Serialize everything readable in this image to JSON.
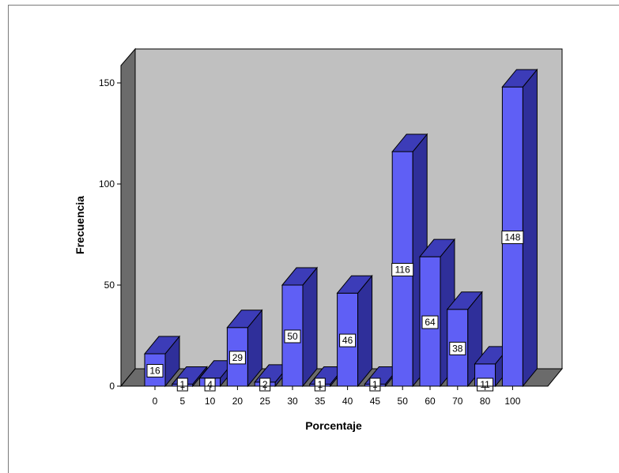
{
  "chart_data": {
    "type": "bar",
    "xlabel": "Porcentaje",
    "ylabel": "Frecuencia",
    "categories": [
      "0",
      "5",
      "10",
      "20",
      "25",
      "30",
      "35",
      "40",
      "45",
      "50",
      "60",
      "70",
      "80",
      "100"
    ],
    "values": [
      16,
      1,
      4,
      29,
      2,
      50,
      1,
      46,
      1,
      116,
      64,
      38,
      11,
      148
    ],
    "ylim": [
      0,
      150
    ],
    "yticks": [
      "0",
      "50",
      "100",
      "150"
    ],
    "three_d": true,
    "data_labels": true,
    "grid": false,
    "colors": {
      "bar_front": "#5f5ff5",
      "bar_side": "#2f2f9a",
      "bar_top": "#3c3cb8",
      "wall": "#c0c0c0",
      "wall_side": "#6b6b6b",
      "floor": "#6b6b6b"
    }
  }
}
